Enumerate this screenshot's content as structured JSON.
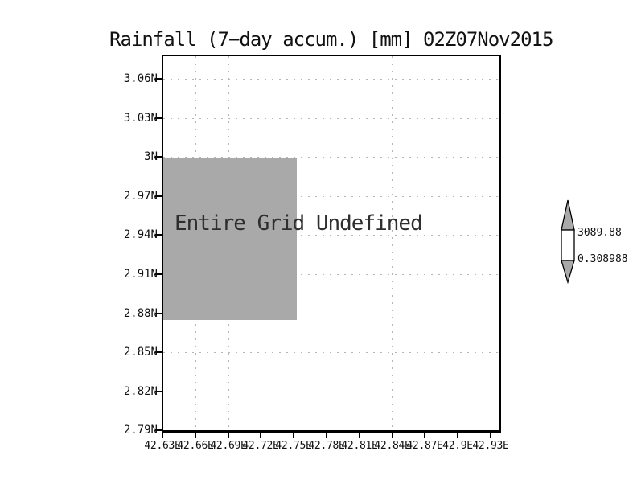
{
  "title": "Rainfall (7−day accum.) [mm] 02Z07Nov2015",
  "plot": {
    "annotation": "Entire Grid Undefined"
  },
  "axes": {
    "y_tick_labels": [
      "3.06N",
      "3.03N",
      "3N",
      "2.97N",
      "2.94N",
      "2.91N",
      "2.88N",
      "2.85N",
      "2.82N",
      "2.79N"
    ],
    "x_tick_labels": [
      "42.63E",
      "42.66E",
      "42.69E",
      "42.72E",
      "42.75E",
      "42.78E",
      "42.81E",
      "42.84E",
      "42.87E",
      "42.9E",
      "42.93E"
    ]
  },
  "colorbar": {
    "upper_label": "3089.88",
    "lower_label": "0.308988"
  },
  "colors": {
    "shade_gray": "#a9a9a9",
    "grid_dot": "#b6b6b6",
    "ink": "#111111"
  },
  "chart_data": {
    "type": "heatmap",
    "title": "Rainfall (7−day accum.) [mm] 02Z07Nov2015",
    "xlabel": "",
    "ylabel": "",
    "x_tick_labels": [
      "42.63E",
      "42.66E",
      "42.69E",
      "42.72E",
      "42.75E",
      "42.78E",
      "42.81E",
      "42.84E",
      "42.87E",
      "42.9E",
      "42.93E"
    ],
    "y_tick_labels": [
      "3.06N",
      "3.03N",
      "3N",
      "2.97N",
      "2.94N",
      "2.91N",
      "2.88N",
      "2.85N",
      "2.82N",
      "2.79N"
    ],
    "x_range": [
      "42.63E",
      "42.93E"
    ],
    "y_range": [
      "2.79N",
      "3.06N"
    ],
    "grid": true,
    "legend_position": "none",
    "annotations": [
      "Entire Grid Undefined"
    ],
    "colorbar": {
      "min": 0.308988,
      "max": 3089.88,
      "min_label": "0.308988",
      "max_label": "3089.88"
    },
    "values": "no data rendered; entire grid undefined; gray shade covers approx lon 42.63E–42.75E, lat 2.875N–3.0N"
  }
}
